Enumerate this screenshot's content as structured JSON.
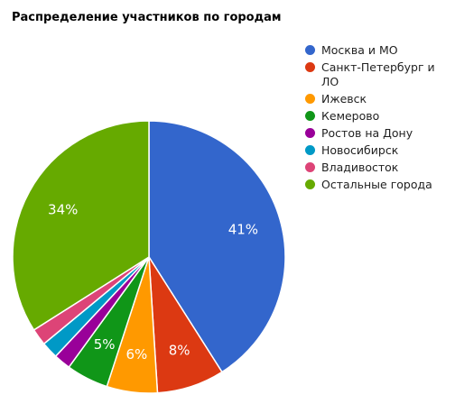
{
  "chart_data": {
    "type": "pie",
    "title": "Распределение участников по городам",
    "legend_position": "right",
    "slices": [
      {
        "label": "Москва и МО",
        "value": 41,
        "value_label": "41%",
        "color": "#3366cc",
        "label_color": "#ffffff"
      },
      {
        "label": "Санкт-Петербург и ЛО",
        "value": 8,
        "value_label": "8%",
        "color": "#dc3912",
        "label_color": "#ffffff"
      },
      {
        "label": "Ижевск",
        "value": 6,
        "value_label": "6%",
        "color": "#ff9900",
        "label_color": "#ffffff"
      },
      {
        "label": "Кемерово",
        "value": 5,
        "value_label": "5%",
        "color": "#109618",
        "label_color": "#ffffff"
      },
      {
        "label": "Ростов на Дону",
        "value": 2,
        "value_label": "",
        "color": "#990099",
        "label_color": "#ffffff"
      },
      {
        "label": "Новосибирск",
        "value": 2,
        "value_label": "",
        "color": "#0099c6",
        "label_color": "#ffffff"
      },
      {
        "label": "Владивосток",
        "value": 2,
        "value_label": "",
        "color": "#dd4477",
        "label_color": "#ffffff"
      },
      {
        "label": "Остальные города",
        "value": 34,
        "value_label": "34%",
        "color": "#66aa00",
        "label_color": "#ffffff"
      }
    ]
  }
}
